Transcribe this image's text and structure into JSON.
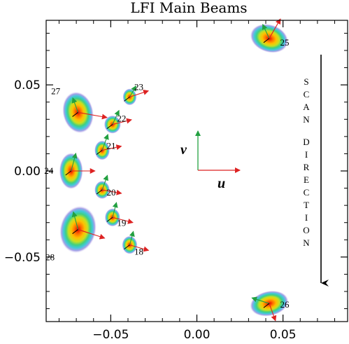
{
  "chart_data": {
    "type": "scatter",
    "title": "LFI Main Beams",
    "xlabel": "",
    "ylabel": "",
    "xlim": [
      -0.0875,
      0.0875
    ],
    "ylim": [
      -0.0875,
      0.0875
    ],
    "x_ticks": [
      -0.05,
      0.0,
      0.05
    ],
    "y_ticks": [
      -0.05,
      0.0,
      0.05
    ],
    "x_tick_labels": [
      "−0.05",
      "0.00",
      "0.05"
    ],
    "y_tick_labels": [
      "−0.05",
      "0.00",
      "0.05"
    ],
    "beams": [
      {
        "label": "25",
        "u": 0.042,
        "v": 0.077
      },
      {
        "label": "27",
        "u": -0.069,
        "v": 0.034
      },
      {
        "label": "23",
        "u": -0.039,
        "v": 0.043
      },
      {
        "label": "22",
        "u": -0.049,
        "v": 0.027
      },
      {
        "label": "21",
        "u": -0.055,
        "v": 0.012
      },
      {
        "label": "24",
        "u": -0.073,
        "v": 0.0
      },
      {
        "label": "20",
        "u": -0.055,
        "v": -0.011
      },
      {
        "label": "19",
        "u": -0.049,
        "v": -0.027
      },
      {
        "label": "18",
        "u": -0.039,
        "v": -0.043
      },
      {
        "label": "28",
        "u": -0.069,
        "v": -0.034
      },
      {
        "label": "26",
        "u": 0.042,
        "v": -0.077
      }
    ],
    "annotations": {
      "u_label": "u",
      "v_label": "v",
      "scan_text": "SCAN DIRECTION"
    }
  },
  "colors": {
    "u_arrow": "#dd2222",
    "v_arrow": "#22a040",
    "beam_core": "#ff2a00",
    "beam_outer": "#b0a0e0"
  }
}
